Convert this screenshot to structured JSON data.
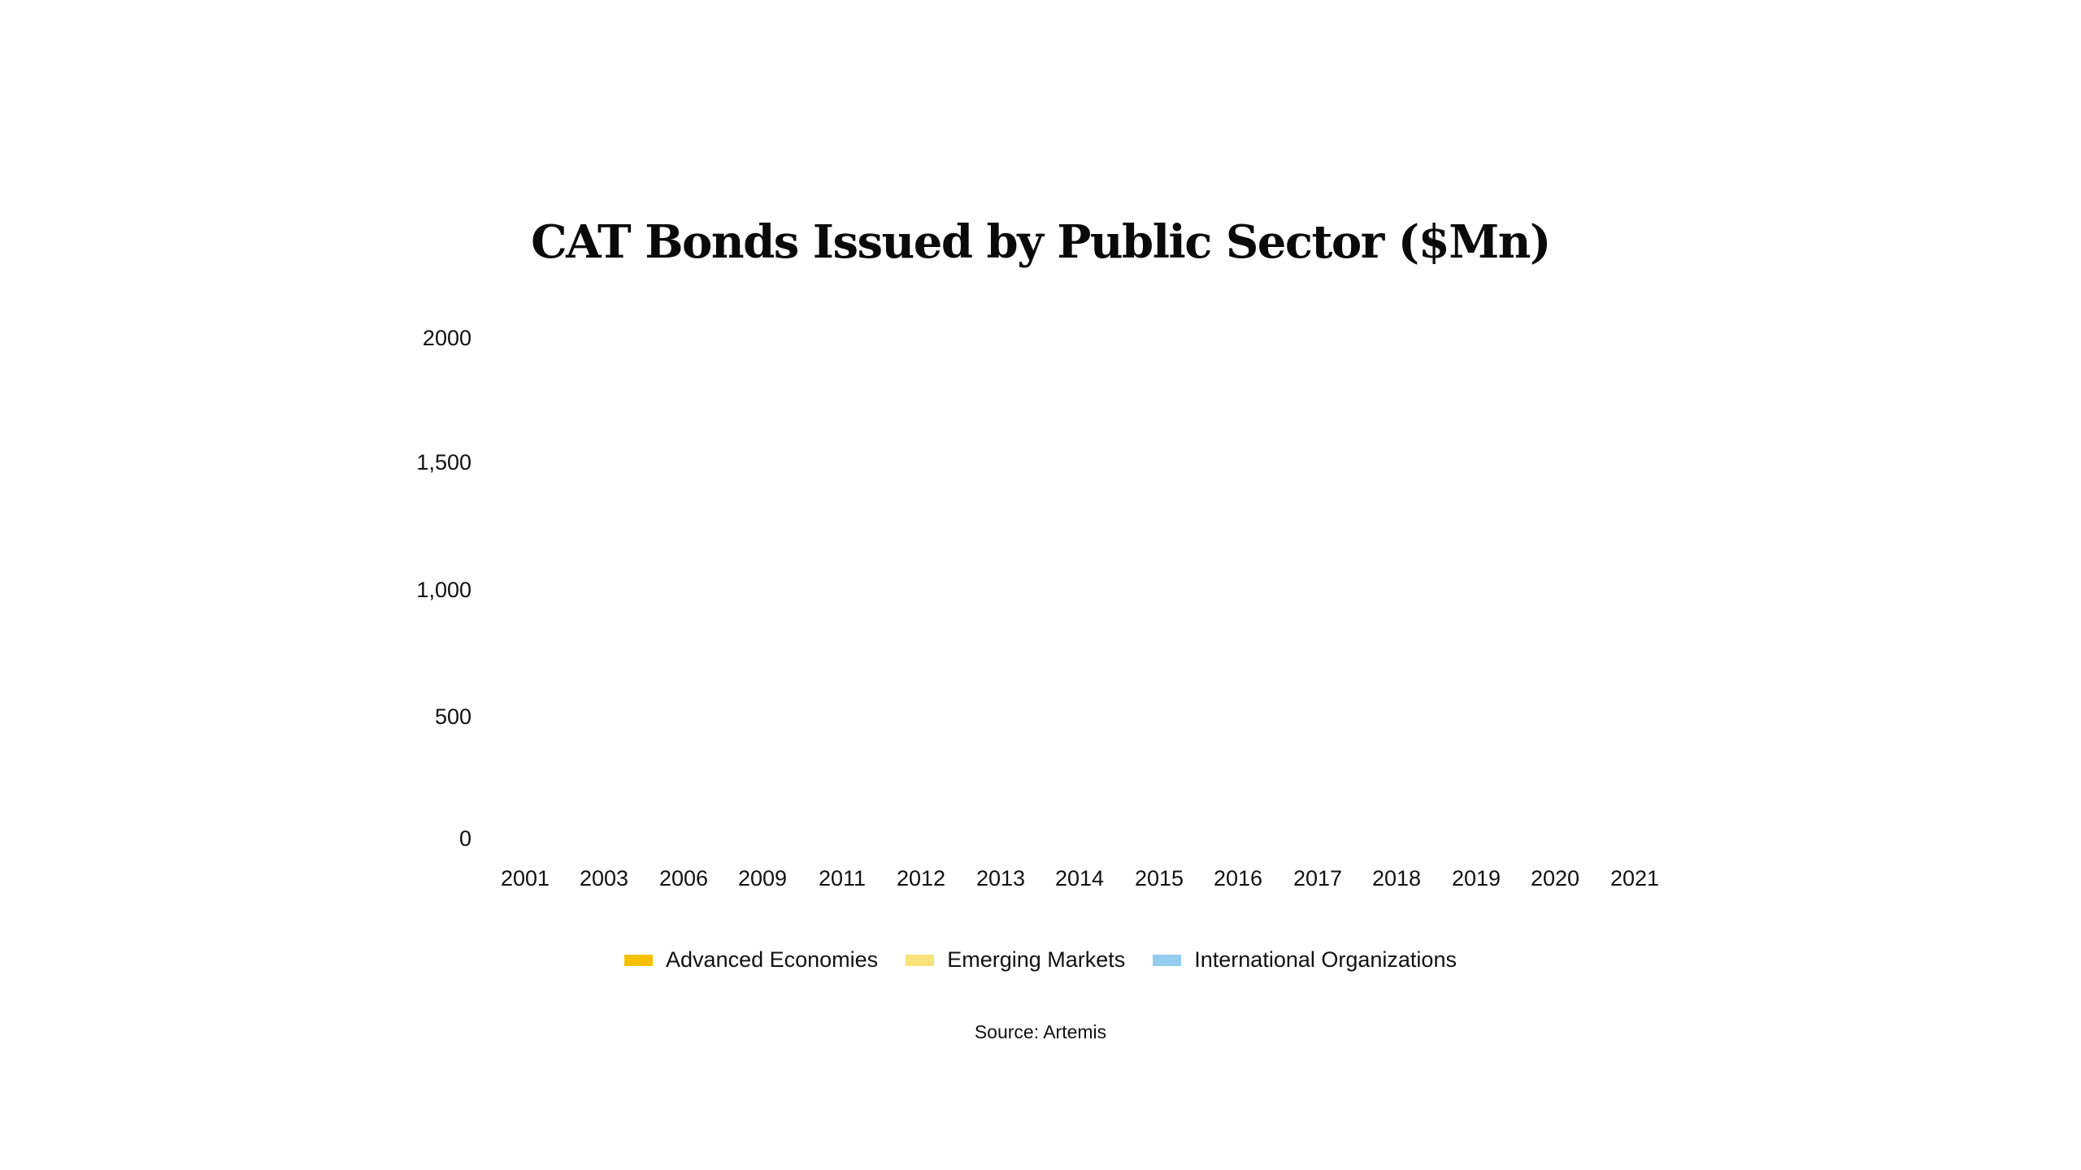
{
  "chart": {
    "title": "CAT Bonds Issued by Public Sector ($Mn)",
    "source": "Source: Artemis",
    "y_ticks": [
      {
        "label": "2000",
        "value": 2000
      },
      {
        "label": "1,500",
        "value": 1500
      },
      {
        "label": "1,000",
        "value": 1000
      },
      {
        "label": "500",
        "value": 500
      },
      {
        "label": "0",
        "value": 0
      }
    ],
    "x_ticks": [
      "2001",
      "2003",
      "2006",
      "2009",
      "2011",
      "2012",
      "2013",
      "2014",
      "2015",
      "2016",
      "2017",
      "2018",
      "2019",
      "2020",
      "2021"
    ],
    "legend": [
      {
        "label": "Advanced Economies",
        "color": "#F5C000"
      },
      {
        "label": "Emerging Markets",
        "color": "#F7E27A"
      },
      {
        "label": "International Organizations",
        "color": "#94CDF0"
      }
    ]
  },
  "chart_data": {
    "type": "bar",
    "stacked": true,
    "title": "CAT Bonds Issued by Public Sector ($Mn)",
    "xlabel": "",
    "ylabel": "",
    "ylim": [
      0,
      2000
    ],
    "y_ticks": [
      0,
      500,
      1000,
      1500,
      2000
    ],
    "grid": false,
    "legend_position": "bottom",
    "categories": [
      "2001",
      "2003",
      "2006",
      "2009",
      "2011",
      "2012",
      "2013",
      "2014",
      "2015",
      "2016",
      "2017",
      "2018",
      "2019",
      "2020",
      "2021"
    ],
    "series": [
      {
        "name": "Advanced Economies",
        "color": "#F5C000",
        "values": [
          null,
          null,
          null,
          null,
          null,
          null,
          null,
          null,
          null,
          null,
          null,
          null,
          null,
          null,
          null
        ]
      },
      {
        "name": "Emerging Markets",
        "color": "#F7E27A",
        "values": [
          null,
          null,
          null,
          null,
          null,
          null,
          null,
          null,
          null,
          null,
          null,
          null,
          null,
          null,
          null
        ]
      },
      {
        "name": "International Organizations",
        "color": "#94CDF0",
        "values": [
          null,
          null,
          null,
          null,
          null,
          null,
          null,
          null,
          null,
          null,
          null,
          null,
          null,
          null,
          null
        ]
      }
    ],
    "note": "Plot area renders empty; no bars visible in the screenshot.",
    "source": "Source: Artemis"
  }
}
